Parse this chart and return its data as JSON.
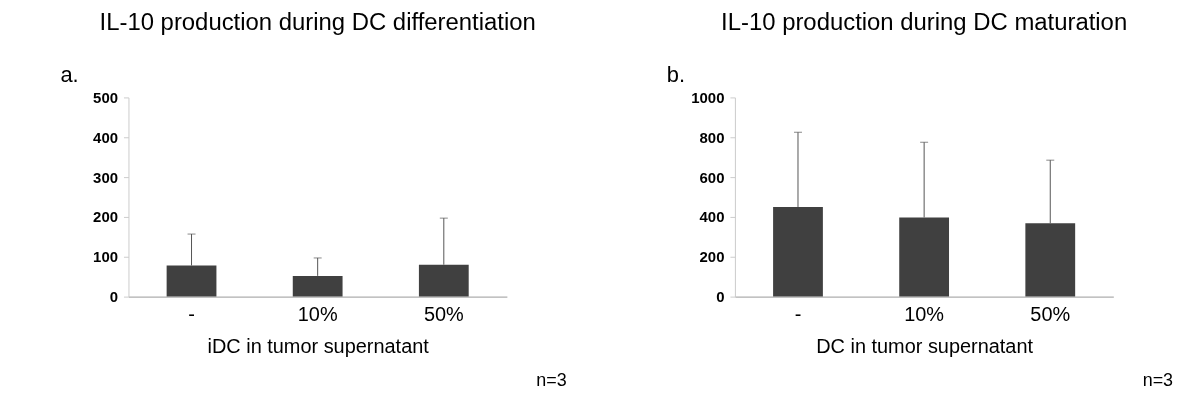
{
  "chart_data": [
    {
      "type": "bar",
      "title": "IL-10 production during DC differentiation",
      "xlabel": "iDC in tumor supernatant",
      "categories": [
        "-",
        "10%",
        "50%"
      ],
      "values": [
        78,
        52,
        80
      ],
      "errors": [
        [
          78,
          157
        ],
        [
          52,
          97
        ],
        [
          80,
          197
        ]
      ],
      "color": "#404040",
      "ylim": [
        0,
        500
      ],
      "yticks": [
        0,
        100,
        200,
        300,
        400,
        500
      ],
      "grid": false,
      "annotations": [
        "a.",
        "n=3"
      ]
    },
    {
      "type": "bar",
      "title": "IL-10 production during DC maturation",
      "xlabel": "DC in tumor supernatant",
      "categories": [
        "-",
        "10%",
        "50%"
      ],
      "values": [
        450,
        397,
        368
      ],
      "errors": [
        [
          450,
          825
        ],
        [
          397,
          775
        ],
        [
          368,
          685
        ]
      ],
      "color": "#404040",
      "ylim": [
        0,
        1000
      ],
      "yticks": [
        0,
        200,
        400,
        600,
        800,
        1000
      ],
      "grid": false,
      "annotations": [
        "b.",
        "n=3"
      ]
    }
  ]
}
